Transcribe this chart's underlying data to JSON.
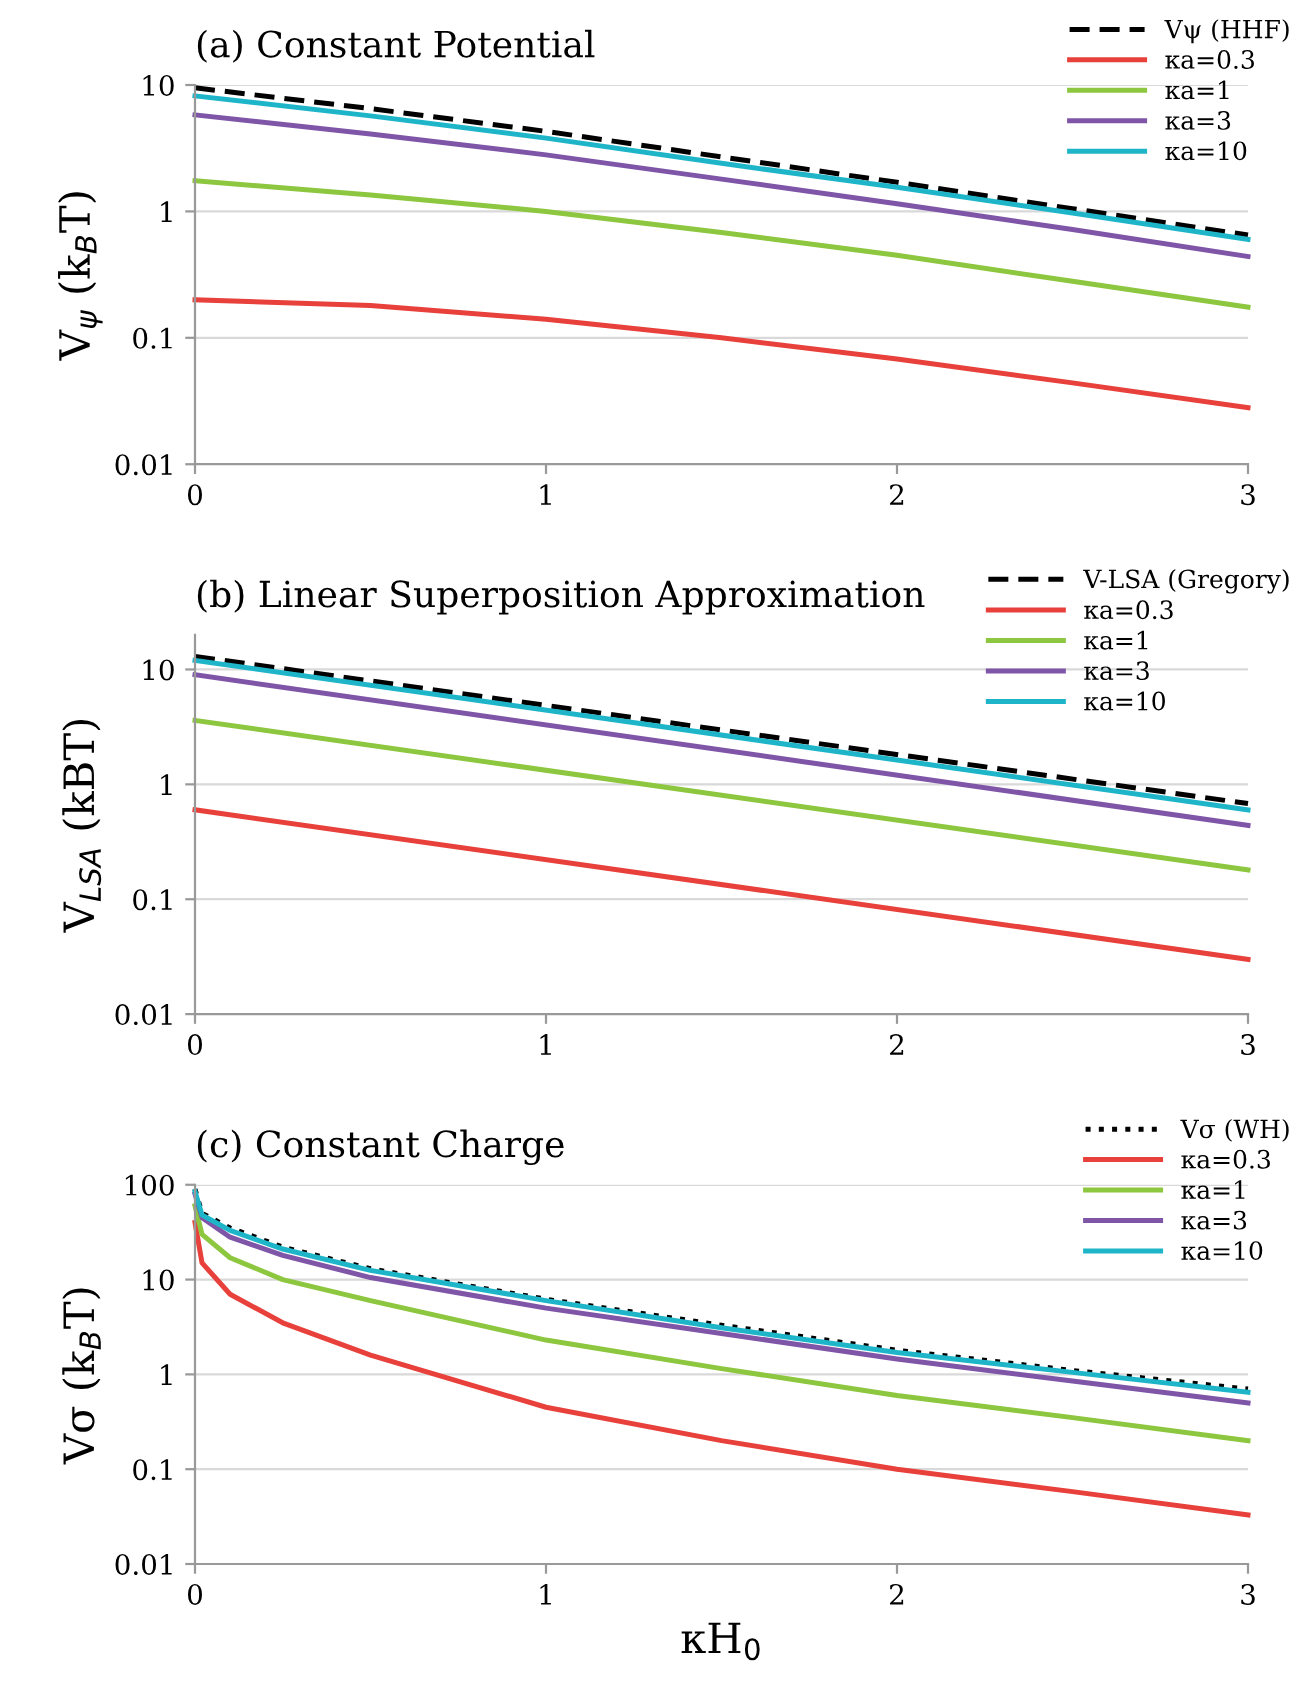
{
  "chart_data": [
    {
      "type": "line",
      "title": "(a) Constant Potential",
      "ylabel": "V$_{ψ}$ (k$_{B}$T)",
      "log": "y",
      "grid": "y",
      "legend": "top right",
      "marker": "none",
      "x": [
        0,
        0.5,
        1,
        1.5,
        2,
        2.5,
        3
      ],
      "xlim": [
        0,
        3
      ],
      "xticks": [
        0,
        1,
        2,
        3
      ],
      "ylim": [
        0.01,
        10
      ],
      "yticks": [
        0.01,
        0.1,
        1,
        10
      ],
      "series": [
        {
          "name": "Vψ (HHF)",
          "color": "#000000",
          "line_style": "dashed",
          "values": [
            9.5,
            6.5,
            4.3,
            2.7,
            1.7,
            1.05,
            0.65
          ]
        },
        {
          "name": "κa=0.3",
          "color": "#e8413c",
          "line_style": "solid",
          "values": [
            0.2,
            0.18,
            0.14,
            0.1,
            0.068,
            0.044,
            0.028
          ]
        },
        {
          "name": "κa=1",
          "color": "#8dc63f",
          "line_style": "solid",
          "values": [
            1.75,
            1.35,
            1.0,
            0.68,
            0.45,
            0.28,
            0.175
          ]
        },
        {
          "name": "κa=3",
          "color": "#7f55a8",
          "line_style": "solid",
          "values": [
            5.8,
            4.1,
            2.8,
            1.8,
            1.15,
            0.72,
            0.44
          ]
        },
        {
          "name": "κa=10",
          "color": "#1fb5c9",
          "line_style": "solid",
          "values": [
            8.2,
            5.7,
            3.8,
            2.4,
            1.55,
            0.97,
            0.6
          ]
        }
      ]
    },
    {
      "type": "line",
      "title": "(b) Linear Superposition Approximation",
      "ylabel": "V$_{LSA}$ (kBT)",
      "log": "y",
      "grid": "y",
      "legend": "top right",
      "marker": "none",
      "x": [
        0,
        3
      ],
      "xlim": [
        0,
        3
      ],
      "xticks": [
        0,
        1,
        2,
        3
      ],
      "ylim": [
        0.01,
        20
      ],
      "yticks": [
        0.01,
        0.1,
        1,
        10
      ],
      "series": [
        {
          "name": "V-LSA (Gregory)",
          "color": "#000000",
          "line_style": "dashed",
          "values": [
            13,
            0.68
          ]
        },
        {
          "name": "κa=0.3",
          "color": "#e8413c",
          "line_style": "solid",
          "values": [
            0.6,
            0.03
          ]
        },
        {
          "name": "κa=1",
          "color": "#8dc63f",
          "line_style": "solid",
          "values": [
            3.6,
            0.18
          ]
        },
        {
          "name": "κa=3",
          "color": "#7f55a8",
          "line_style": "solid",
          "values": [
            9,
            0.44
          ]
        },
        {
          "name": "κa=10",
          "color": "#1fb5c9",
          "line_style": "solid",
          "values": [
            12,
            0.6
          ]
        }
      ]
    },
    {
      "type": "line",
      "title": "(c) Constant Charge",
      "ylabel": "Vσ (k$_{B}$T)",
      "xlabel": "κH$_{0}$",
      "log": "y",
      "grid": "y",
      "legend": "top right",
      "marker": "none",
      "x": [
        0,
        0.02,
        0.1,
        0.25,
        0.5,
        1,
        1.5,
        2,
        2.5,
        3
      ],
      "xlim": [
        0,
        3
      ],
      "xticks": [
        0,
        1,
        2,
        3
      ],
      "ylim": [
        0.01,
        100
      ],
      "yticks": [
        0.01,
        0.1,
        1,
        10,
        100
      ],
      "series": [
        {
          "name": "Vσ (WH)",
          "color": "#000000",
          "line_style": "dotted",
          "values": [
            90,
            50,
            35,
            22,
            13,
            6.2,
            3.3,
            1.8,
            1.1,
            0.7
          ]
        },
        {
          "name": "κa=0.3",
          "color": "#e8413c",
          "line_style": "solid",
          "values": [
            40,
            15,
            7,
            3.5,
            1.6,
            0.45,
            0.2,
            0.1,
            0.058,
            0.033
          ]
        },
        {
          "name": "κa=1",
          "color": "#8dc63f",
          "line_style": "solid",
          "values": [
            60,
            30,
            17,
            10,
            6,
            2.3,
            1.15,
            0.6,
            0.35,
            0.2
          ]
        },
        {
          "name": "κa=3",
          "color": "#7f55a8",
          "line_style": "solid",
          "values": [
            80,
            45,
            28,
            18,
            10.5,
            5,
            2.7,
            1.45,
            0.85,
            0.5
          ]
        },
        {
          "name": "κa=10",
          "color": "#1fb5c9",
          "line_style": "solid",
          "values": [
            85,
            48,
            33,
            21,
            12.5,
            6,
            3.1,
            1.7,
            1.05,
            0.65
          ]
        }
      ]
    }
  ]
}
